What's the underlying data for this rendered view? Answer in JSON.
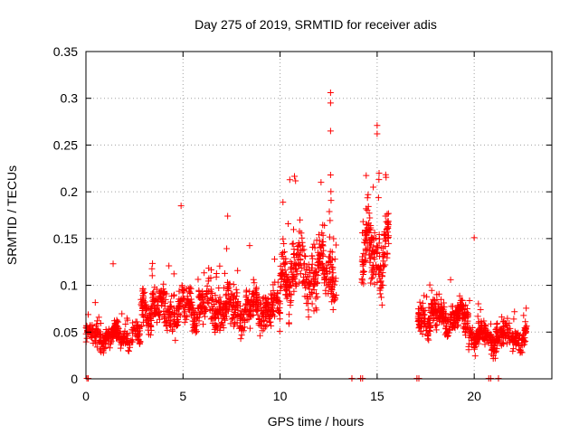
{
  "chart_data": {
    "type": "scatter",
    "title": "Day 275 of 2019, SRMTID for receiver adis",
    "xlabel": "GPS time / hours",
    "ylabel": "SRMTID / TECUs",
    "xlim": [
      0,
      24
    ],
    "ylim": [
      0,
      0.35
    ],
    "xticks": [
      0,
      5,
      10,
      15,
      20
    ],
    "xtick_labels": [
      "0",
      "5",
      "10",
      "15",
      "20"
    ],
    "yticks": [
      0,
      0.05,
      0.1,
      0.15,
      0.2,
      0.25,
      0.3,
      0.35
    ],
    "ytick_labels": [
      "0",
      "0.05",
      "0.1",
      "0.15",
      "0.2",
      "0.25",
      "0.3",
      "0.35"
    ],
    "grid": true,
    "marker": "+",
    "color": "#ff0000",
    "series": [
      {
        "name": "SRMTID",
        "segments": [
          {
            "start": 0.0,
            "end": 2.8,
            "base": 0.045,
            "spread": 0.03,
            "count": 260
          },
          {
            "start": 2.8,
            "end": 6.5,
            "base": 0.075,
            "spread": 0.05,
            "count": 380
          },
          {
            "start": 6.5,
            "end": 10.0,
            "base": 0.075,
            "spread": 0.05,
            "count": 380
          },
          {
            "start": 10.0,
            "end": 12.9,
            "base": 0.115,
            "spread": 0.08,
            "count": 330
          },
          {
            "start": 14.2,
            "end": 15.6,
            "base": 0.135,
            "spread": 0.09,
            "count": 190
          },
          {
            "start": 17.1,
            "end": 19.7,
            "base": 0.065,
            "spread": 0.04,
            "count": 300
          },
          {
            "start": 19.7,
            "end": 22.7,
            "base": 0.045,
            "spread": 0.035,
            "count": 300
          }
        ],
        "highlights": [
          {
            "x": 1.4,
            "y": 0.123
          },
          {
            "x": 4.9,
            "y": 0.185
          },
          {
            "x": 7.3,
            "y": 0.174
          },
          {
            "x": 10.5,
            "y": 0.213
          },
          {
            "x": 12.6,
            "y": 0.306
          },
          {
            "x": 12.6,
            "y": 0.295
          },
          {
            "x": 12.6,
            "y": 0.265
          },
          {
            "x": 12.6,
            "y": 0.218
          },
          {
            "x": 15.0,
            "y": 0.271
          },
          {
            "x": 15.0,
            "y": 0.262
          },
          {
            "x": 15.1,
            "y": 0.22
          },
          {
            "x": 14.8,
            "y": 0.205
          },
          {
            "x": 20.0,
            "y": 0.151
          }
        ],
        "zeros": [
          0.05,
          0.12,
          13.7,
          14.15,
          14.25,
          17.05,
          17.15,
          20.75,
          20.85,
          21.25
        ]
      }
    ]
  }
}
